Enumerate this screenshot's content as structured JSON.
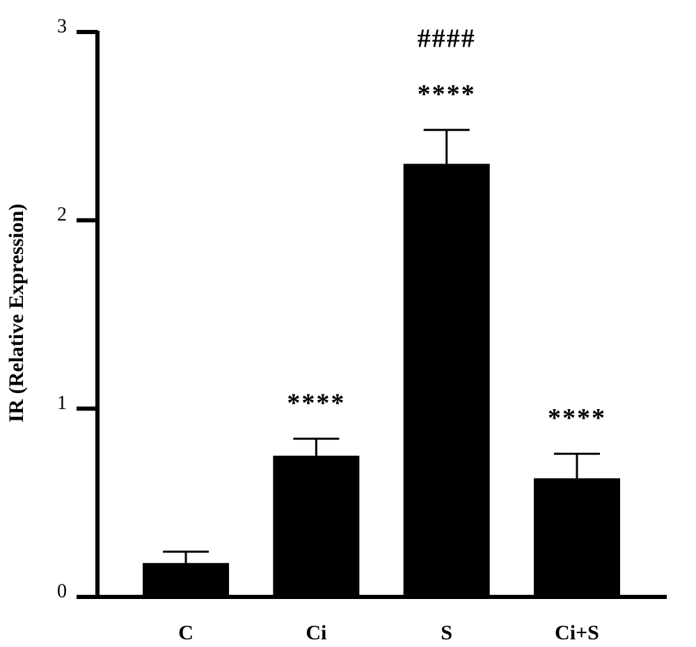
{
  "chart_data": {
    "type": "bar",
    "ylabel": "IR (Relative Expression)",
    "categories": [
      "C",
      "Ci",
      "S",
      "Ci+S"
    ],
    "values": [
      0.18,
      0.75,
      2.3,
      0.63
    ],
    "errors": [
      0.06,
      0.09,
      0.18,
      0.13
    ],
    "color": "#000000",
    "ylim": [
      0,
      3
    ],
    "yticks": [
      0,
      1,
      2,
      3
    ],
    "annotations": [
      {
        "text": "****",
        "category": "Ci"
      },
      {
        "text": "****",
        "category": "S"
      },
      {
        "text": "####",
        "category": "S"
      },
      {
        "text": "****",
        "category": "Ci+S"
      }
    ]
  }
}
